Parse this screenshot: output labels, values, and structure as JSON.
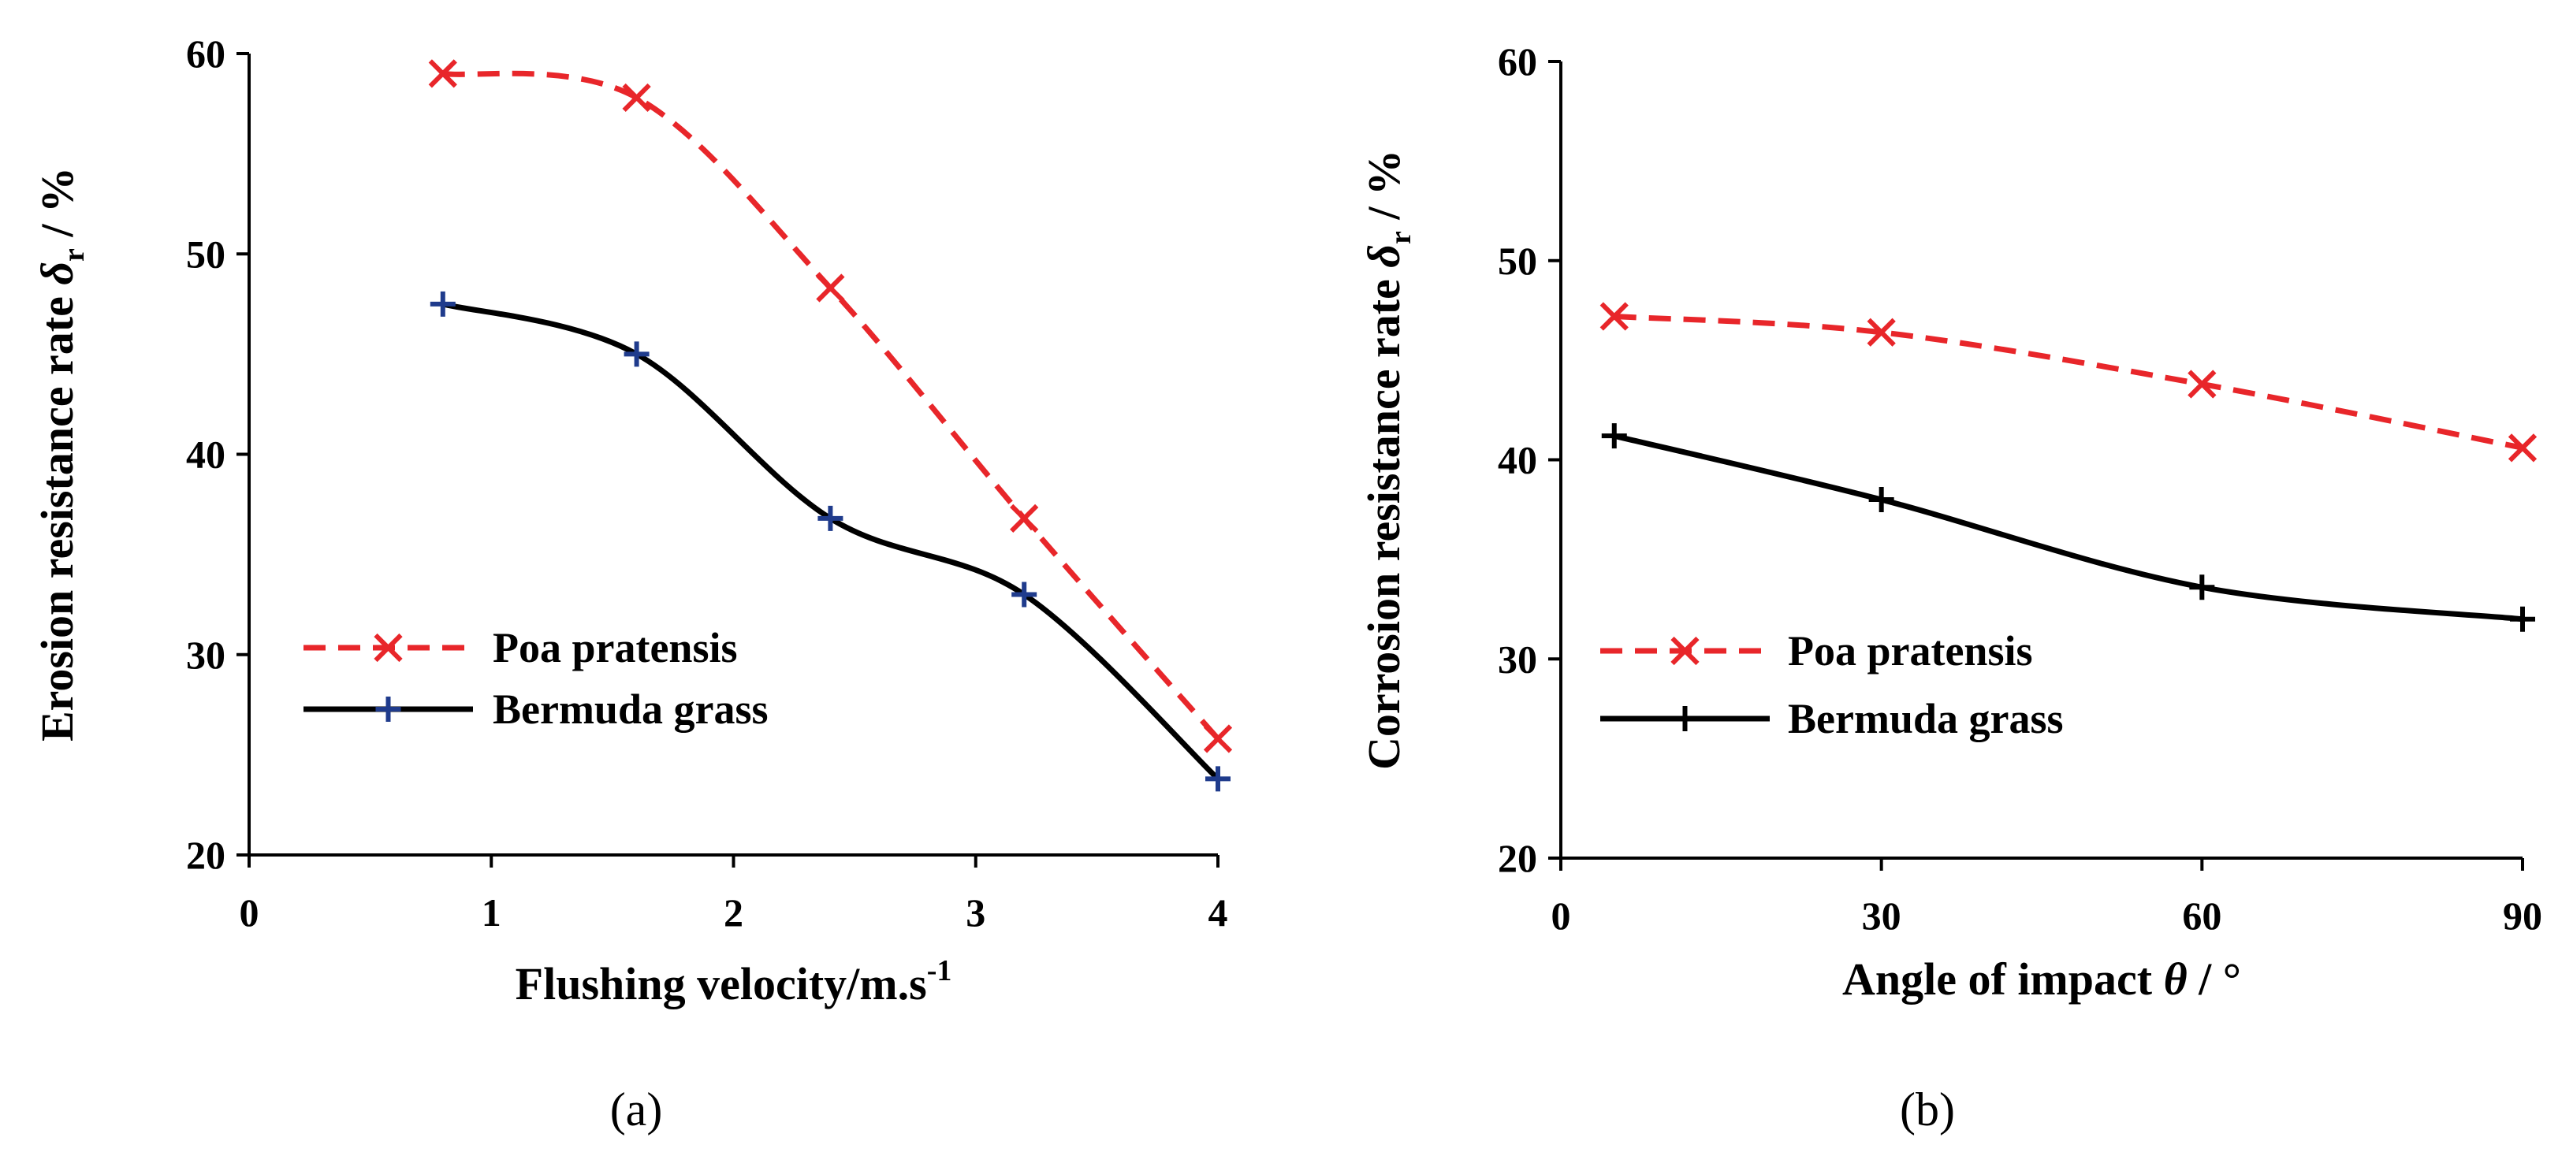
{
  "chart_data": [
    {
      "type": "line",
      "panel_label": "(a)",
      "xlabel": "Flushing velocity/m.s",
      "xlabel_sup": "-1",
      "ylabel": "Erosion resistance rate",
      "ylabel_symbol": "δ",
      "ylabel_sub": "r",
      "ylabel_unit": " / %",
      "xlim": [
        0,
        4
      ],
      "ylim": [
        20,
        60
      ],
      "xticks": [
        0,
        1,
        2,
        3,
        4
      ],
      "yticks": [
        20,
        30,
        40,
        50,
        60
      ],
      "legend_position": "left",
      "series": [
        {
          "name": "Poa pratensis",
          "color": "#e8262a",
          "dash": "dashed",
          "marker": "x",
          "x": [
            0.8,
            1.6,
            2.4,
            3.2,
            4.0
          ],
          "y": [
            59.0,
            57.8,
            48.3,
            36.8,
            25.8
          ]
        },
        {
          "name": "Bermuda grass",
          "color": "#000000",
          "marker_color": "#1f3b8c",
          "dash": "solid",
          "marker": "+",
          "x": [
            0.8,
            1.6,
            2.4,
            3.2,
            4.0
          ],
          "y": [
            47.5,
            45.0,
            36.8,
            33.0,
            23.8
          ]
        }
      ]
    },
    {
      "type": "line",
      "panel_label": "(b)",
      "xlabel": "Angle of impact",
      "xlabel_symbol": "θ",
      "xlabel_unit": " / °",
      "ylabel": "Corrosion resistance rate",
      "ylabel_symbol": "δ",
      "ylabel_sub": "r",
      "ylabel_unit": " / %",
      "xlim": [
        0,
        90
      ],
      "ylim": [
        20,
        60
      ],
      "xticks": [
        0,
        30,
        60,
        90
      ],
      "yticks": [
        20,
        30,
        40,
        50,
        60
      ],
      "legend_position": "left",
      "series": [
        {
          "name": "Poa pratensis",
          "color": "#e8262a",
          "dash": "dashed",
          "marker": "x",
          "x": [
            5,
            30,
            60,
            90
          ],
          "y": [
            47.2,
            46.4,
            43.8,
            40.6
          ]
        },
        {
          "name": "Bermuda grass",
          "color": "#000000",
          "marker_color": "#000000",
          "dash": "solid",
          "marker": "+",
          "x": [
            5,
            30,
            60,
            90
          ],
          "y": [
            41.2,
            38.0,
            33.6,
            32.0
          ]
        }
      ]
    }
  ]
}
